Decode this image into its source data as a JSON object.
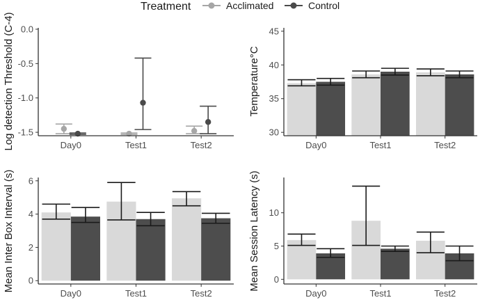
{
  "legend": {
    "title": "Treatment",
    "entries": [
      {
        "name": "Acclimated",
        "point_color": "#a6a6a6",
        "fill_color": "#d9d9d9"
      },
      {
        "name": "Control",
        "point_color": "#4a4a4a",
        "fill_color": "#4d4d4d"
      }
    ]
  },
  "colors": {
    "errorbar_dark": "#1a1a1a",
    "axis": "#333333"
  },
  "chart_data": [
    {
      "id": "detection",
      "type": "scatter",
      "ylabel": "Log detection Threshold (C-4)",
      "categories": [
        "Day0",
        "Test1",
        "Test2"
      ],
      "ylim": [
        -1.55,
        0.02
      ],
      "yticks": [
        0.0,
        -0.5,
        -1.0,
        -1.5
      ],
      "ytick_labels": [
        "0.0",
        "-0.5",
        "-1.0",
        "-1.5"
      ],
      "series": [
        {
          "name": "Acclimated",
          "values": [
            -1.45,
            -1.52,
            -1.48
          ],
          "lower": [
            -1.52,
            -1.53,
            -1.52
          ],
          "upper": [
            -1.38,
            -1.51,
            -1.41
          ]
        },
        {
          "name": "Control",
          "values": [
            -1.52,
            -1.07,
            -1.35
          ],
          "lower": [
            -1.53,
            -1.46,
            -1.52
          ],
          "upper": [
            -1.51,
            -0.42,
            -1.12
          ]
        }
      ]
    },
    {
      "id": "temperature",
      "type": "bar",
      "ylabel": "Temperature°C",
      "categories": [
        "Day0",
        "Test1",
        "Test2"
      ],
      "ylim": [
        29.5,
        45.5
      ],
      "yticks": [
        30,
        35,
        40,
        45
      ],
      "ytick_labels": [
        "30",
        "35",
        "40",
        "45"
      ],
      "series": [
        {
          "name": "Acclimated",
          "values": [
            37.3,
            38.6,
            38.9
          ],
          "lower": [
            36.9,
            38.1,
            38.4
          ],
          "upper": [
            37.8,
            39.1,
            39.4
          ]
        },
        {
          "name": "Control",
          "values": [
            37.5,
            39.0,
            38.6
          ],
          "lower": [
            37.0,
            38.5,
            38.1
          ],
          "upper": [
            38.0,
            39.5,
            39.1
          ]
        }
      ]
    },
    {
      "id": "interbox",
      "type": "bar",
      "ylabel": "Mean Inter Box Interval (s)",
      "categories": [
        "Day0",
        "Test1",
        "Test2"
      ],
      "ylim": [
        -0.2,
        6.2
      ],
      "yticks": [
        0,
        2,
        4,
        6
      ],
      "ytick_labels": [
        "0",
        "2",
        "4",
        "6"
      ],
      "series": [
        {
          "name": "Acclimated",
          "values": [
            4.1,
            4.75,
            4.95
          ],
          "lower": [
            3.7,
            3.65,
            4.5
          ],
          "upper": [
            4.6,
            5.9,
            5.35
          ]
        },
        {
          "name": "Control",
          "values": [
            3.85,
            3.7,
            3.75
          ],
          "lower": [
            3.5,
            3.3,
            3.45
          ],
          "upper": [
            4.4,
            4.1,
            4.05
          ]
        }
      ]
    },
    {
      "id": "latency",
      "type": "bar",
      "ylabel": "Mean Session Latency (s)",
      "categories": [
        "Day0",
        "Test1",
        "Test2"
      ],
      "ylim": [
        -0.7,
        15.3
      ],
      "yticks": [
        0,
        5,
        10
      ],
      "ytick_labels": [
        "0",
        "5",
        "10"
      ],
      "series": [
        {
          "name": "Acclimated",
          "values": [
            5.9,
            8.8,
            5.8
          ],
          "lower": [
            5.1,
            5.1,
            4.0
          ],
          "upper": [
            6.8,
            14.0,
            7.1
          ]
        },
        {
          "name": "Control",
          "values": [
            3.9,
            4.6,
            3.9
          ],
          "lower": [
            3.3,
            4.2,
            2.8
          ],
          "upper": [
            4.6,
            5.0,
            5.0
          ]
        }
      ]
    }
  ]
}
